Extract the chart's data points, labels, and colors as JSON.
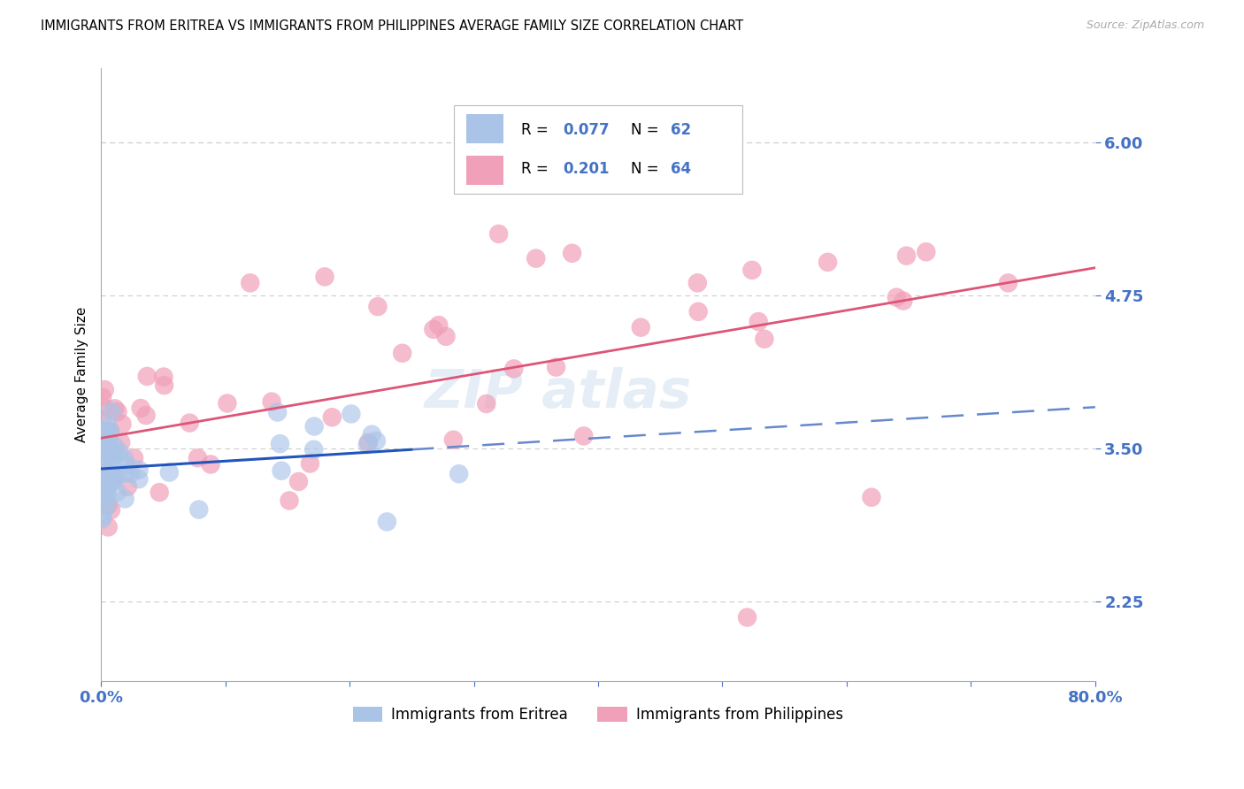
{
  "title": "IMMIGRANTS FROM ERITREA VS IMMIGRANTS FROM PHILIPPINES AVERAGE FAMILY SIZE CORRELATION CHART",
  "source": "Source: ZipAtlas.com",
  "ylabel": "Average Family Size",
  "xlim": [
    0.0,
    0.8
  ],
  "ylim": [
    1.6,
    6.6
  ],
  "yticks": [
    2.25,
    3.5,
    4.75,
    6.0
  ],
  "xticks_all": [
    0.0,
    0.1,
    0.2,
    0.3,
    0.4,
    0.5,
    0.6,
    0.7,
    0.8
  ],
  "series1_label": "Immigrants from Eritrea",
  "series2_label": "Immigrants from Philippines",
  "series1_color": "#aac4e8",
  "series2_color": "#f0a0b8",
  "series1_line_color": "#2255bb",
  "series1_dash_color": "#6688cc",
  "series2_line_color": "#dd5577",
  "axis_color": "#4472c4",
  "legend_color": "#4472c4",
  "grid_color": "#cccccc",
  "title_fontsize": 10.5,
  "source_fontsize": 9,
  "legend_r1": "0.077",
  "legend_n1": "62",
  "legend_r2": "0.201",
  "legend_n2": "64",
  "watermark": "ZIPAtlas"
}
